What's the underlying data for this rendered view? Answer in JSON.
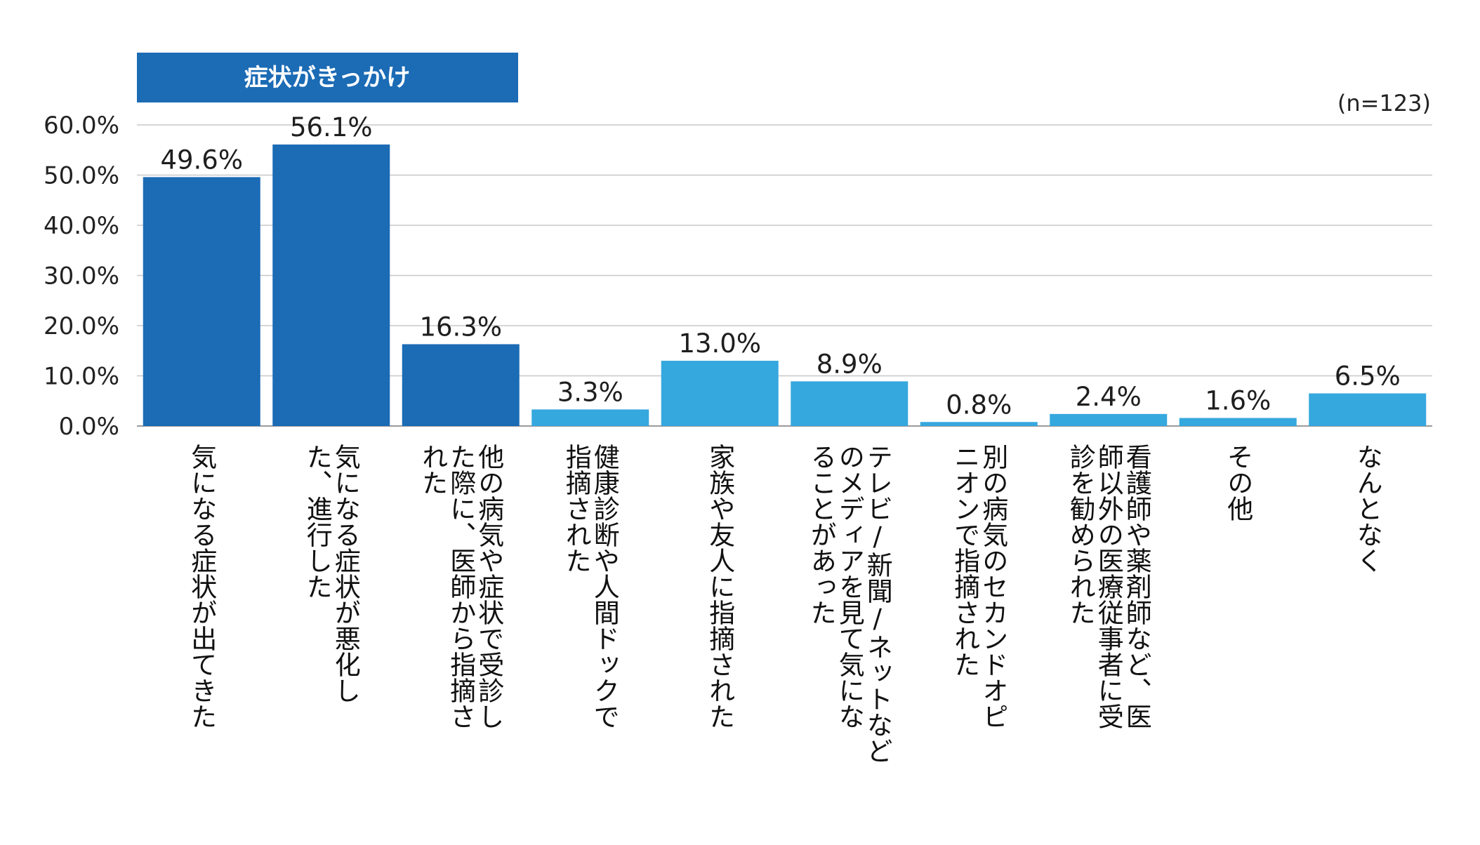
{
  "sample_note": "(n=123)",
  "group_label": "症状がきっかけ",
  "colors": {
    "group_dark": "#1b6bb5",
    "other_light": "#35a8de",
    "group_header": "#1b6bb5"
  },
  "chart_data": {
    "type": "bar",
    "ylim": [
      0,
      60
    ],
    "y_ticks": [
      "0.0%",
      "10.0%",
      "20.0%",
      "30.0%",
      "40.0%",
      "50.0%",
      "60.0%"
    ],
    "grid": true,
    "categories": [
      "気になる症状が出てきた",
      "気になる症状が悪化した、進行した",
      "他の病気や症状で受診した際に、医師から指摘された",
      "健康診断や人間ドックで指摘された",
      "家族や友人に指摘された",
      "テレビ/新聞/ネットなどのメディアを見て気になることがあった",
      "別の病気のセカンドオピニオンで指摘された",
      "看護師や薬剤師など、医師以外の医療従事者に受診を勧められた",
      "その他",
      "なんとなく"
    ],
    "category_lines": [
      [
        "気になる症状が出てきた"
      ],
      [
        "気になる症状が悪化し",
        "た、進行した"
      ],
      [
        "他の病気や症状で受診し",
        "た際に、医師から指摘さ",
        "れた"
      ],
      [
        "健康診断や人間ドックで",
        "指摘された"
      ],
      [
        "家族や友人に指摘された"
      ],
      [
        "テレビ/新聞/ネットなど",
        "のメディアを見て気にな",
        "ることがあった"
      ],
      [
        "別の病気のセカンドオピ",
        "ニオンで指摘された"
      ],
      [
        "看護師や薬剤師など、医",
        "師以外の医療従事者に受",
        "診を勧められた"
      ],
      [
        "その他"
      ],
      [
        "なんとなく"
      ]
    ],
    "values": [
      49.6,
      56.1,
      16.3,
      3.3,
      13.0,
      8.9,
      0.8,
      2.4,
      1.6,
      6.5
    ],
    "value_labels": [
      "49.6%",
      "56.1%",
      "16.3%",
      "3.3%",
      "13.0%",
      "8.9%",
      "0.8%",
      "2.4%",
      "1.6%",
      "6.5%"
    ],
    "group": [
      1,
      1,
      1,
      0,
      0,
      0,
      0,
      0,
      0,
      0
    ]
  }
}
